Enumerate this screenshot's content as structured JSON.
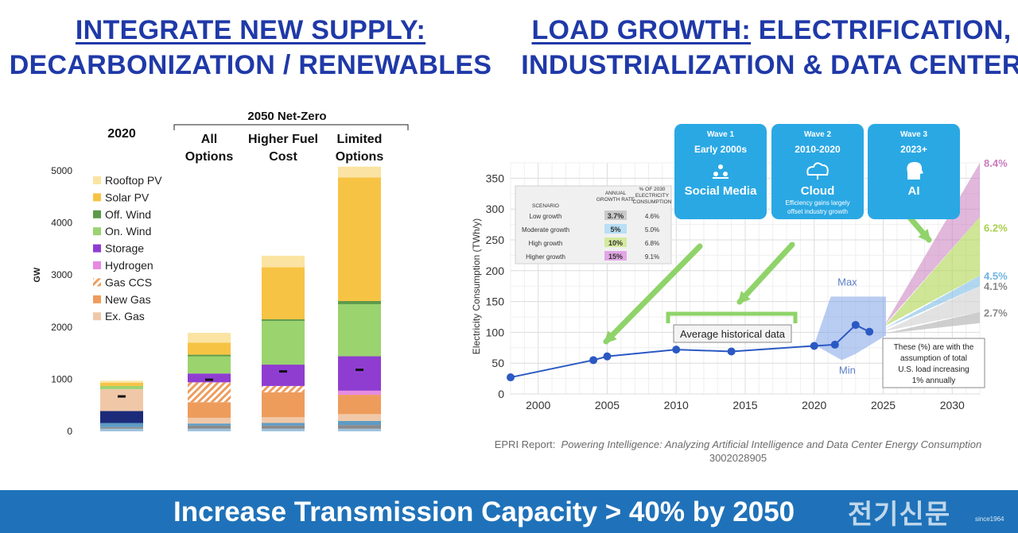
{
  "headers": {
    "left_u": "INTEGRATE NEW SUPPLY:",
    "left_2": "DECARBONIZATION / RENEWABLES",
    "right_u": "LOAD GROWTH:",
    "right_1": " ELECTRIFICATION,",
    "right_2": "INDUSTRIALIZATION & DATA CENTER"
  },
  "left_chart": {
    "chart_data": {
      "type": "bar",
      "stacked": true,
      "ylabel": "GW",
      "ylim": [
        0,
        5000
      ],
      "yticks": [
        "0",
        "1000",
        "2000",
        "3000",
        "4000",
        "5000"
      ],
      "group_label": "2050 Net-Zero",
      "category_lines": [
        [
          "2020"
        ],
        [
          "All",
          "Options"
        ],
        [
          "Higher Fuel",
          "Cost"
        ],
        [
          "Limited",
          "Options"
        ]
      ],
      "legend": [
        "Rooftop PV",
        "Solar PV",
        "Off. Wind",
        "On. Wind",
        "Storage",
        "Hydrogen",
        "Gas CCS",
        "New Gas",
        "Ex. Gas"
      ],
      "base_colors": [
        "#9dc3de",
        "#8a8a8a",
        "#5e9bc4",
        "#1b2b7a"
      ],
      "bars": [
        {
          "segments": [
            [
              "#9dc3de",
              50
            ],
            [
              "#8a8a8a",
              30
            ],
            [
              "#5e9bc4",
              80
            ],
            [
              "#1b2b7a",
              230
            ],
            [
              "#f0c8a8",
              420
            ],
            [
              "#9bd36f",
              60
            ],
            [
              "#f7c344",
              60
            ],
            [
              "#fbe4a3",
              40
            ]
          ],
          "marker": 670
        },
        {
          "segments": [
            [
              "#9dc3de",
              50
            ],
            [
              "#8a8a8a",
              60
            ],
            [
              "#5e9bc4",
              40
            ],
            [
              "#f0c8a8",
              110
            ],
            [
              "#ee9c5c",
              300
            ],
            [
              "hatch",
              380
            ],
            [
              "#8f3dd1",
              170
            ],
            [
              "#9bd36f",
              330
            ],
            [
              "#5c9a4a",
              30
            ],
            [
              "#f7c344",
              230
            ],
            [
              "#fbe4a3",
              190
            ]
          ],
          "marker": 990
        },
        {
          "segments": [
            [
              "#9dc3de",
              50
            ],
            [
              "#8a8a8a",
              60
            ],
            [
              "#5e9bc4",
              50
            ],
            [
              "#f0c8a8",
              110
            ],
            [
              "#ee9c5c",
              480
            ],
            [
              "hatch",
              120
            ],
            [
              "#8f3dd1",
              410
            ],
            [
              "#9bd36f",
              840
            ],
            [
              "#5c9a4a",
              30
            ],
            [
              "#f7c344",
              1000
            ],
            [
              "#fbe4a3",
              220
            ]
          ],
          "marker": 1150
        },
        {
          "segments": [
            [
              "#9dc3de",
              50
            ],
            [
              "#8a8a8a",
              70
            ],
            [
              "#5e9bc4",
              80
            ],
            [
              "#f0c8a8",
              130
            ],
            [
              "#ee9c5c",
              370
            ],
            [
              "#e58be0",
              80
            ],
            [
              "#8f3dd1",
              660
            ],
            [
              "#9bd36f",
              1000
            ],
            [
              "#5c9a4a",
              60
            ],
            [
              "#f7c344",
              2370
            ],
            [
              "#fbe4a3",
              210
            ]
          ],
          "marker": 1180
        }
      ]
    },
    "legend_colors": [
      "#fbe4a3",
      "#f7c344",
      "#5c9a4a",
      "#9bd36f",
      "#8f3dd1",
      "#e58be0",
      "hatch",
      "#ee9c5c",
      "#f0c8a8"
    ]
  },
  "right_chart": {
    "chart_data": {
      "type": "line",
      "ylabel": "Electricity Consumption (TWh/y)",
      "xlim": [
        1998,
        2032
      ],
      "ylim": [
        0,
        375
      ],
      "xticks": [
        2000,
        2005,
        2010,
        2015,
        2020,
        2025,
        2030
      ],
      "yticks": [
        0,
        50,
        100,
        150,
        200,
        250,
        300,
        350
      ],
      "series": [
        {
          "name": "Historical",
          "x": [
            1998,
            2004,
            2005,
            2010,
            2014,
            2020,
            2021.5,
            2023,
            2024
          ],
          "y": [
            27,
            55,
            61,
            72,
            69,
            78,
            80,
            112,
            101
          ]
        }
      ],
      "uncertainty_label_max": "Max",
      "uncertainty_label_min": "Min",
      "projection_labels": [
        "8.4%",
        "6.2%",
        "4.5%",
        "4.1%",
        "2.7%"
      ],
      "projection_end_values": [
        375,
        272,
        192,
        175,
        133
      ],
      "projection_colors": [
        "#c97bbd",
        "#b4d85c",
        "#7dbde6",
        "#d6d6d6",
        "#b9b9b9"
      ],
      "annotation_avg": "Average historical data",
      "note_lines": [
        "These (%) are with the",
        "assumption of total",
        "U.S. load increasing",
        "1% annually"
      ]
    },
    "table": {
      "headers": [
        [
          "SCENARIO"
        ],
        [
          "ANNUAL",
          "GROWTH RATE"
        ],
        [
          "% OF 2030",
          "ELECTRICITY",
          "CONSUMPTION"
        ]
      ],
      "rows": [
        {
          "scenario": "Low growth",
          "rate": "3.7%",
          "share": "4.6%",
          "color": "#c9c9c9"
        },
        {
          "scenario": "Moderate growth",
          "rate": "5%",
          "share": "5.0%",
          "color": "#b8dff6"
        },
        {
          "scenario": "High growth",
          "rate": "10%",
          "share": "6.8%",
          "color": "#d3ea9c"
        },
        {
          "scenario": "Higher growth",
          "rate": "15%",
          "share": "9.1%",
          "color": "#e2a6e5"
        }
      ]
    },
    "waves": [
      {
        "title": "Wave 1",
        "period": "Early 2000s",
        "name": "Social Media",
        "icon": "people-icon",
        "note": []
      },
      {
        "title": "Wave 2",
        "period": "2010-2020",
        "name": "Cloud",
        "icon": "cloud-icon",
        "note": [
          "Efficiency gains largely",
          "offset industry growth"
        ]
      },
      {
        "title": "Wave 3",
        "period": "2023+",
        "name": "AI",
        "icon": "ai-head-icon",
        "note": []
      }
    ]
  },
  "caption": {
    "prefix": "EPRI Report:",
    "title": "Powering Intelligence: Analyzing Artificial Intelligence and Data Center Energy Consumption",
    "number": "3002028905"
  },
  "banner": {
    "text": "Increase Transmission Capacity > 40% by 2050",
    "watermark": "전기신문",
    "watermark_since": "since1964",
    "color": "#1f72b9"
  }
}
